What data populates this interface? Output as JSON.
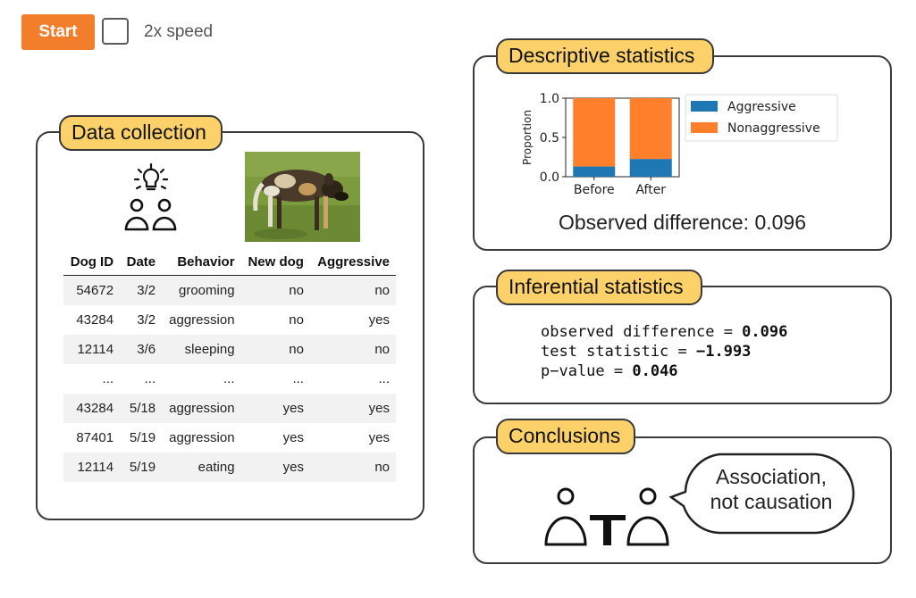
{
  "controls": {
    "start_label": "Start",
    "speed_label": "2x speed"
  },
  "data_collection": {
    "title": "Data collection",
    "table": {
      "headers": [
        "Dog ID",
        "Date",
        "Behavior",
        "New dog",
        "Aggressive"
      ],
      "rows": [
        [
          "54672",
          "3/2",
          "grooming",
          "no",
          "no"
        ],
        [
          "43284",
          "3/2",
          "aggression",
          "no",
          "yes"
        ],
        [
          "12114",
          "3/6",
          "sleeping",
          "no",
          "no"
        ],
        [
          "...",
          "...",
          "...",
          "...",
          "..."
        ],
        [
          "43284",
          "5/18",
          "aggression",
          "yes",
          "yes"
        ],
        [
          "87401",
          "5/19",
          "aggression",
          "yes",
          "yes"
        ],
        [
          "12114",
          "5/19",
          "eating",
          "yes",
          "no"
        ]
      ]
    }
  },
  "descriptive": {
    "title": "Descriptive statistics",
    "observed_text": "Observed difference: 0.096"
  },
  "chart_data": {
    "type": "bar",
    "stacked": true,
    "categories": [
      "Before",
      "After"
    ],
    "series": [
      {
        "name": "Aggressive",
        "values": [
          0.13,
          0.226
        ],
        "color": "#1f77b4"
      },
      {
        "name": "Nonaggressive",
        "values": [
          0.87,
          0.774
        ],
        "color": "#ff7f2a"
      }
    ],
    "ylabel": "Proportion",
    "xlabel": "",
    "ylim": [
      0,
      1.0
    ],
    "yticks": [
      "0.0",
      "0.5",
      "1.0"
    ],
    "legend": "right"
  },
  "inferential": {
    "title": "Inferential statistics",
    "lines": [
      {
        "label": "observed difference = ",
        "value": "0.096"
      },
      {
        "label": "test statistic = ",
        "value": "−1.993"
      },
      {
        "label": "p−value = ",
        "value": "0.046"
      }
    ]
  },
  "conclusions": {
    "title": "Conclusions",
    "bubble_line1": "Association,",
    "bubble_line2": "not causation"
  }
}
